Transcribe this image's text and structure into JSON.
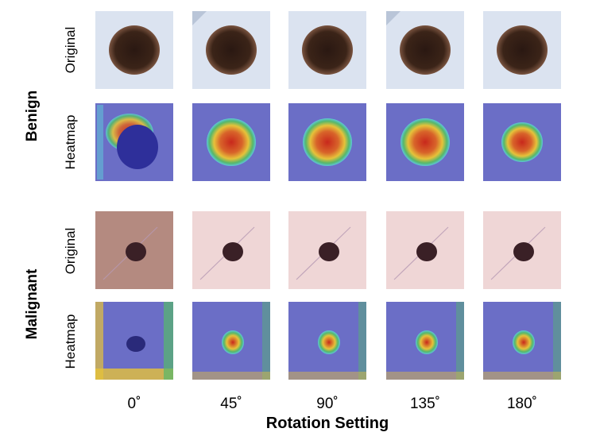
{
  "groups": [
    {
      "label": "Benign",
      "class": "benign"
    },
    {
      "label": "Malignant",
      "class": "malignant"
    }
  ],
  "row_labels": [
    "Original",
    "Heatmap"
  ],
  "columns": [
    "0˚",
    "45˚",
    "90˚",
    "135˚",
    "180˚"
  ],
  "x_title": "Rotation Setting",
  "colors": {
    "benign_skin": "#dbe3f0",
    "benign_lesion": "#3b2418",
    "malignant_skin": "#efd6d6",
    "malignant_lesion": "#3a2026",
    "heatmap_base": "#6b6ec6",
    "heat_red": "#c8281c",
    "heat_yellow": "#e6c23a",
    "heat_green": "#55b86b",
    "heat_cyan": "#5ec6d8"
  }
}
